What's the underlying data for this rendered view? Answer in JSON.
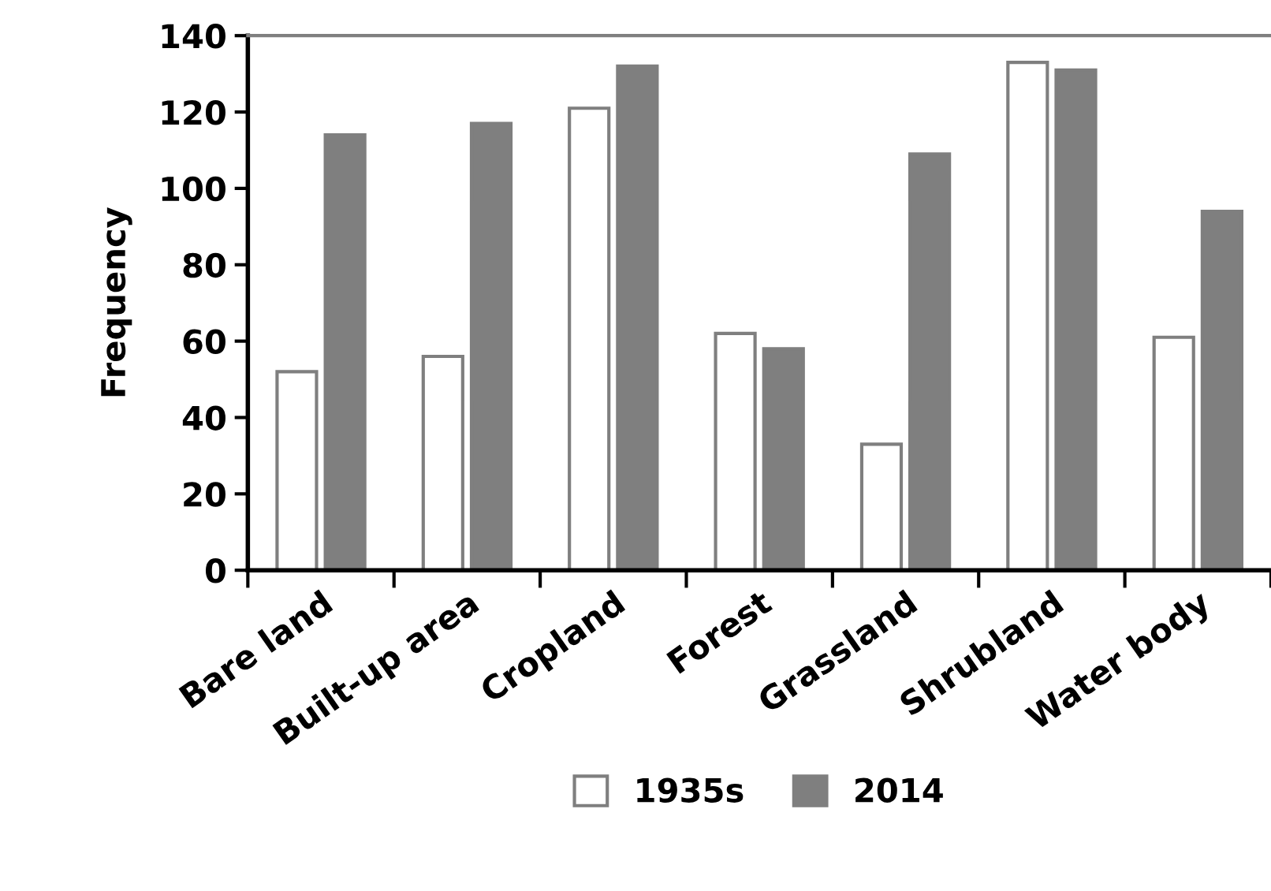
{
  "chart_data": {
    "type": "bar",
    "ylabel": "Frequency",
    "categories": [
      "Bare land",
      "Built-up area",
      "Cropland",
      "Forest",
      "Grassland",
      "Shrubland",
      "Water body"
    ],
    "series": [
      {
        "name": "1935s",
        "color": "#ffffff",
        "values": [
          52,
          56,
          121,
          62,
          33,
          133,
          61
        ]
      },
      {
        "name": "2014",
        "color": "#7f7f7f",
        "values": [
          114,
          117,
          132,
          58,
          109,
          131,
          94
        ]
      }
    ],
    "ylim": [
      0,
      140
    ],
    "yticks": [
      0,
      20,
      40,
      60,
      80,
      100,
      120,
      140
    ],
    "grid": false,
    "legend": "bottom"
  }
}
